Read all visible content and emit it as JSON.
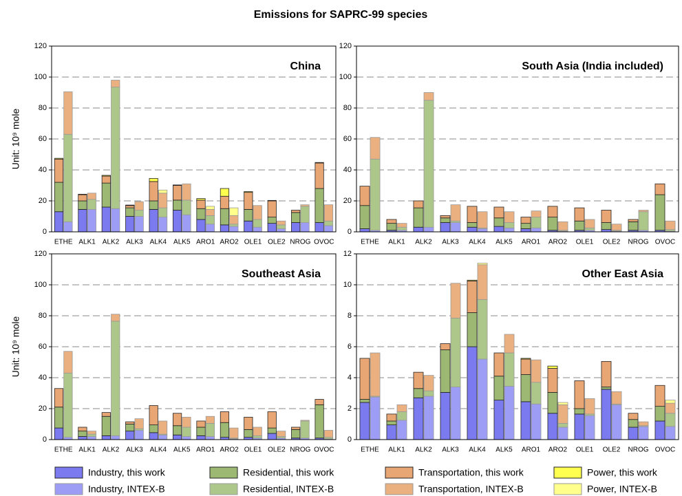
{
  "title": "Emissions for SAPRC-99 species",
  "chart_data": [
    {
      "type": "bar",
      "title": "China",
      "ylabel": "Unit: 10⁹ mole",
      "categories": [
        "ETHE",
        "ALK1",
        "ALK2",
        "ALK3",
        "ALK4",
        "ALK5",
        "ARO1",
        "ARO2",
        "OLE1",
        "OLE2",
        "NROG",
        "OVOC"
      ],
      "ylim": [
        0,
        120
      ],
      "yticks": [
        0,
        20,
        40,
        60,
        80,
        100,
        120
      ],
      "grid": true,
      "series": [
        {
          "name": "Industry, this work",
          "color": "#7b7bef",
          "values": [
            13,
            14.5,
            16,
            10,
            14.5,
            14,
            8,
            4.5,
            7,
            5.5,
            6,
            6
          ]
        },
        {
          "name": "Residential, this work",
          "color": "#9cb872",
          "values": [
            19,
            5.5,
            15.5,
            5.5,
            5.5,
            6.5,
            7,
            10.5,
            7.5,
            4,
            6.5,
            22
          ]
        },
        {
          "name": "Transportation, this work",
          "color": "#e8a674",
          "values": [
            15,
            4,
            4.5,
            1.5,
            12.5,
            9.5,
            5.5,
            8,
            11,
            10.5,
            1.5,
            16.5
          ]
        },
        {
          "name": "Power, this work",
          "color": "#ffff50",
          "values": [
            0.5,
            0.3,
            0.5,
            0.3,
            2,
            0.3,
            1,
            5,
            0.5,
            0.3,
            0,
            0.3
          ]
        },
        {
          "name": "Industry, INTEX-B",
          "color": "#9d9df6",
          "values": [
            6.5,
            14.5,
            15,
            10,
            9.5,
            11,
            5,
            3.5,
            3,
            2,
            6,
            4
          ]
        },
        {
          "name": "Residential, INTEX-B",
          "color": "#adc78a",
          "values": [
            56.5,
            6.5,
            78.5,
            4,
            6,
            9.5,
            5.5,
            1.5,
            5,
            2.5,
            10.5,
            3
          ]
        },
        {
          "name": "Transportation, INTEX-B",
          "color": "#ebb07f",
          "values": [
            27.5,
            4,
            4.5,
            5.5,
            9.5,
            10.5,
            4,
            5.5,
            9,
            2.5,
            1,
            10.5
          ]
        },
        {
          "name": "Power, INTEX-B",
          "color": "#ffff8c",
          "values": [
            0,
            0,
            0,
            0,
            2,
            0,
            2,
            5,
            0,
            0,
            0,
            0
          ]
        }
      ]
    },
    {
      "type": "bar",
      "title": "South Asia (India included)",
      "categories": [
        "ETHE",
        "ALK1",
        "ALK2",
        "ALK3",
        "ALK4",
        "ALK5",
        "ARO1",
        "ARO2",
        "OLE1",
        "OLE2",
        "NROG",
        "OVOC"
      ],
      "ylim": [
        0,
        120
      ],
      "yticks": [
        0,
        20,
        40,
        60,
        80,
        100,
        120
      ],
      "grid": true,
      "series": [
        {
          "values": [
            2,
            1,
            3,
            6,
            3,
            3.5,
            2,
            1,
            1,
            1.5,
            1,
            1
          ]
        },
        {
          "values": [
            15,
            4.5,
            12.5,
            3,
            3,
            5.5,
            3.5,
            8.5,
            6,
            4.5,
            5.5,
            23
          ]
        },
        {
          "values": [
            12.5,
            2.5,
            4.5,
            1.5,
            10.5,
            7,
            4,
            7,
            8.5,
            8,
            1.5,
            7
          ]
        },
        {
          "values": [
            0,
            0,
            0,
            0,
            0,
            0,
            0,
            0,
            0,
            0,
            0,
            0
          ]
        },
        {
          "values": [
            1,
            1,
            3,
            6,
            2,
            2.5,
            2.5,
            0.5,
            1,
            0.5,
            1,
            0.5
          ]
        },
        {
          "values": [
            46,
            2,
            82,
            1,
            0.5,
            3.5,
            7,
            0.5,
            1.5,
            0.5,
            12,
            1
          ]
        },
        {
          "values": [
            14,
            2.5,
            5,
            10.5,
            10.5,
            7,
            4,
            5.5,
            5.5,
            4,
            1,
            5.5
          ]
        },
        {
          "values": [
            0,
            0,
            0,
            0,
            0,
            0,
            0,
            0,
            0,
            0,
            0,
            0
          ]
        }
      ]
    },
    {
      "type": "bar",
      "title": "Southeast Asia",
      "ylabel": "Unit: 10⁹ mole",
      "categories": [
        "ETHE",
        "ALK1",
        "ALK2",
        "ALK3",
        "ALK4",
        "ALK5",
        "ARO1",
        "ARO2",
        "OLE1",
        "OLE2",
        "NROG",
        "OVOC"
      ],
      "ylim": [
        0,
        120
      ],
      "yticks": [
        0,
        20,
        40,
        60,
        80,
        100,
        120
      ],
      "grid": true,
      "series": [
        {
          "values": [
            7.5,
            2,
            2.5,
            5.5,
            4.5,
            3,
            2.5,
            1.5,
            1.5,
            4,
            1,
            1
          ]
        },
        {
          "values": [
            13.5,
            3.5,
            12.5,
            4.5,
            5,
            6,
            5.5,
            9.5,
            5,
            3.5,
            5.5,
            21.5
          ]
        },
        {
          "values": [
            12,
            2.5,
            2.5,
            1.5,
            12.5,
            8,
            4,
            7,
            8,
            10.5,
            1.5,
            3.5
          ]
        },
        {
          "values": [
            0,
            0,
            0,
            0,
            0,
            0,
            0,
            0,
            0,
            0,
            0,
            0
          ]
        },
        {
          "values": [
            1.5,
            2,
            2.5,
            6,
            3,
            2,
            2,
            0.5,
            1,
            1,
            1,
            0.5
          ]
        },
        {
          "values": [
            41.5,
            1.5,
            74,
            1,
            0.5,
            6,
            8.5,
            0.5,
            1.5,
            1,
            11,
            1
          ]
        },
        {
          "values": [
            14,
            2,
            4.5,
            6.5,
            8.5,
            6.5,
            4.5,
            6.5,
            5.5,
            3.5,
            0.5,
            4.5
          ]
        },
        {
          "values": [
            0,
            0,
            0,
            0,
            0,
            0,
            0,
            0,
            0,
            0,
            0,
            0
          ]
        }
      ]
    },
    {
      "type": "bar",
      "title": "Other East Asia",
      "categories": [
        "ETHE",
        "ALK1",
        "ALK2",
        "ALK3",
        "ALK4",
        "ALK5",
        "ARO1",
        "ARO2",
        "OLE1",
        "OLE2",
        "NROG",
        "OVOC"
      ],
      "ylim": [
        0,
        12
      ],
      "yticks": [
        0,
        2,
        4,
        6,
        8,
        10,
        12
      ],
      "grid": true,
      "series": [
        {
          "values": [
            2.4,
            0.95,
            2.7,
            3.05,
            6,
            2.55,
            2.45,
            1.7,
            1.65,
            3.25,
            0.8,
            1.2
          ]
        },
        {
          "values": [
            0.2,
            0.25,
            0.6,
            2.75,
            2.2,
            1.55,
            1.75,
            1.35,
            0.35,
            0.15,
            0.5,
            0.95
          ]
        },
        {
          "values": [
            2.65,
            0.45,
            1.05,
            0.4,
            2.05,
            1.5,
            1,
            1.55,
            1.8,
            1.65,
            0.4,
            1.35
          ]
        },
        {
          "values": [
            0,
            0,
            0,
            0,
            0.05,
            0,
            0.05,
            0.15,
            0,
            0,
            0,
            0
          ]
        },
        {
          "values": [
            2.75,
            1.25,
            2.8,
            3.4,
            5.2,
            3.45,
            2.3,
            0.8,
            1.55,
            2.25,
            0.85,
            0.85
          ]
        },
        {
          "values": [
            0.05,
            0.55,
            0.35,
            4.45,
            3.85,
            2.15,
            1.4,
            0.25,
            0.1,
            0.05,
            0.05,
            0.85
          ]
        },
        {
          "values": [
            2.8,
            0.45,
            1,
            2.25,
            2.25,
            1.2,
            1.45,
            1.2,
            1,
            0.8,
            0.25,
            0.65
          ]
        },
        {
          "values": [
            0,
            0,
            0,
            0,
            0.1,
            0,
            0,
            0.15,
            0,
            0,
            0,
            0.2
          ]
        }
      ]
    }
  ]
}
